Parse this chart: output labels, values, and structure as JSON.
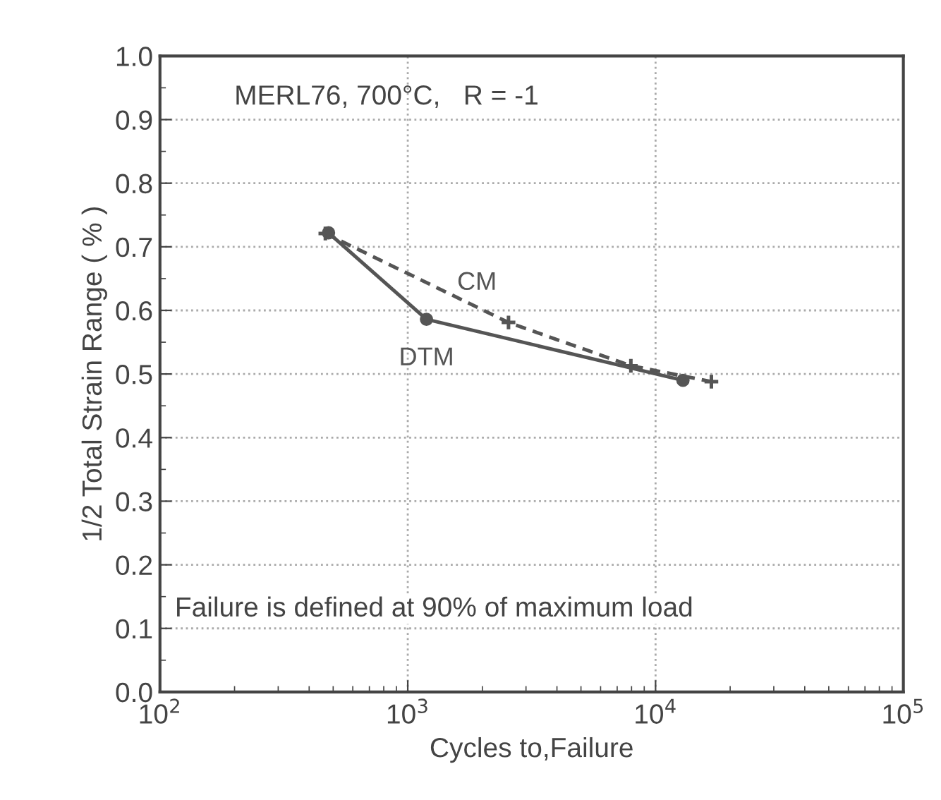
{
  "chart_data": {
    "type": "line",
    "xlabel": "Cycles to,Failure",
    "ylabel": "1/2 Total Strain Range ( % )",
    "annotations": [
      "MERL76, 700°C,   R = -1",
      "Failure is defined at 90% of maximum load"
    ],
    "series": [
      {
        "name": "CM",
        "color": "#555555",
        "marker": "cross",
        "line_style": "dashed",
        "x": [
          465,
          2550,
          7950,
          16800
        ],
        "values": [
          0.721,
          0.581,
          0.513,
          0.488
        ]
      },
      {
        "name": "DTM",
        "color": "#555555",
        "marker": "circle",
        "line_style": "solid",
        "x": [
          479,
          1190,
          12900
        ],
        "values": [
          0.722,
          0.586,
          0.49
        ]
      }
    ],
    "log": "x",
    "xlim": [
      100,
      100000
    ],
    "xticks": [
      {
        "value": 100,
        "label": "10$^{2}$"
      },
      {
        "value": 1000,
        "label": "10$^{3}$"
      },
      {
        "value": 10000,
        "label": "10$^{4}$"
      },
      {
        "value": 100000,
        "label": "10$^{5}$"
      }
    ],
    "ylim": [
      0.0,
      1.0
    ],
    "yticks": [
      {
        "value": 0.0,
        "label": "0.0"
      },
      {
        "value": 0.1,
        "label": "0.1"
      },
      {
        "value": 0.2,
        "label": "0.2"
      },
      {
        "value": 0.3,
        "label": "0.3"
      },
      {
        "value": 0.4,
        "label": "0.4"
      },
      {
        "value": 0.5,
        "label": "0.5"
      },
      {
        "value": 0.6,
        "label": "0.6"
      },
      {
        "value": 0.7,
        "label": "0.7"
      },
      {
        "value": 0.8,
        "label": "0.8"
      },
      {
        "value": 0.9,
        "label": "0.9"
      },
      {
        "value": 1.0,
        "label": "1.0"
      }
    ],
    "grid": true,
    "legend": false
  }
}
